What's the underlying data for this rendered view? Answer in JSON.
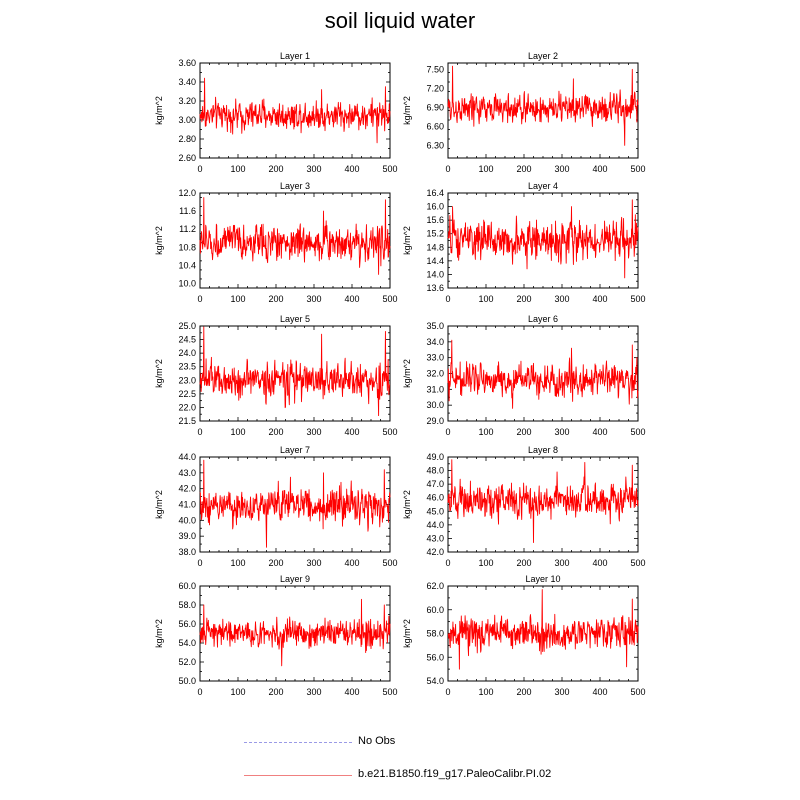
{
  "title": "soil liquid water",
  "legend": {
    "no_obs_label": "No Obs",
    "run_label": "b.e21.B1850.f19_g17.PaleoCalibr.PI.02",
    "no_obs_color": "#9a9ae6",
    "run_color": "#f08080"
  },
  "chart_data": [
    {
      "type": "line",
      "title": "Layer 1",
      "ylabel": "kg/m^2",
      "xlim": [
        0,
        500
      ],
      "ylim": [
        2.6,
        3.6
      ],
      "xticks": [
        0,
        100,
        200,
        300,
        400,
        500
      ],
      "yticks": [
        2.6,
        2.8,
        3.0,
        3.2,
        3.4,
        3.6
      ],
      "ytick_decimals": 2,
      "ytick_side": "left",
      "baseline": 3.05,
      "spread": 0.11,
      "spikes": [
        [
          12,
          3.44
        ],
        [
          320,
          3.32
        ],
        [
          466,
          2.76
        ],
        [
          488,
          3.35
        ]
      ],
      "series_color": "#ff0000",
      "n_points": 500
    },
    {
      "type": "line",
      "title": "Layer 2",
      "ylabel": "kg/m^2",
      "xlim": [
        0,
        500
      ],
      "ylim": [
        6.1,
        7.6
      ],
      "xticks": [
        0,
        100,
        200,
        300,
        400,
        500
      ],
      "yticks": [
        6.3,
        6.6,
        6.9,
        7.2,
        7.5
      ],
      "ytick_decimals": 2,
      "ytick_side": "left",
      "baseline": 6.88,
      "spread": 0.17,
      "spikes": [
        [
          12,
          7.55
        ],
        [
          485,
          7.5
        ],
        [
          465,
          6.3
        ],
        [
          330,
          7.35
        ]
      ],
      "series_color": "#ff0000",
      "n_points": 500
    },
    {
      "type": "line",
      "title": "Layer 3",
      "ylabel": "kg/m^2",
      "xlim": [
        0,
        500
      ],
      "ylim": [
        9.9,
        12.0
      ],
      "xticks": [
        0,
        100,
        200,
        300,
        400,
        500
      ],
      "yticks": [
        10.0,
        10.4,
        10.8,
        11.2,
        11.6,
        12.0
      ],
      "ytick_decimals": 1,
      "ytick_side": "left",
      "baseline": 10.9,
      "spread": 0.28,
      "spikes": [
        [
          10,
          11.9
        ],
        [
          325,
          11.6
        ],
        [
          488,
          11.85
        ],
        [
          470,
          10.2
        ]
      ],
      "series_color": "#ff0000",
      "n_points": 500
    },
    {
      "type": "line",
      "title": "Layer 4",
      "ylabel": "kg/m^2",
      "xlim": [
        0,
        500
      ],
      "ylim": [
        13.6,
        16.4
      ],
      "xticks": [
        0,
        100,
        200,
        300,
        400,
        500
      ],
      "yticks": [
        13.6,
        14.0,
        14.4,
        14.8,
        15.2,
        15.6,
        16.0,
        16.4
      ],
      "ytick_decimals": 1,
      "ytick_side": "left",
      "baseline": 15.0,
      "spread": 0.42,
      "spikes": [
        [
          12,
          16.0
        ],
        [
          485,
          16.2
        ],
        [
          465,
          13.9
        ],
        [
          325,
          16.0
        ]
      ],
      "series_color": "#ff0000",
      "n_points": 500
    },
    {
      "type": "line",
      "title": "Layer 5",
      "ylabel": "kg/m^2",
      "xlim": [
        0,
        500
      ],
      "ylim": [
        21.5,
        25.0
      ],
      "xticks": [
        0,
        100,
        200,
        300,
        400,
        500
      ],
      "yticks": [
        21.5,
        22.0,
        22.5,
        23.0,
        23.5,
        24.0,
        24.5,
        25.0
      ],
      "ytick_decimals": 1,
      "ytick_side": "left",
      "baseline": 23.0,
      "spread": 0.5,
      "spikes": [
        [
          10,
          25.0
        ],
        [
          320,
          24.7
        ],
        [
          488,
          24.8
        ],
        [
          470,
          21.7
        ]
      ],
      "series_color": "#ff0000",
      "n_points": 500
    },
    {
      "type": "line",
      "title": "Layer 6",
      "ylabel": "kg/m^2",
      "xlim": [
        0,
        500
      ],
      "ylim": [
        29.0,
        35.0
      ],
      "xticks": [
        0,
        100,
        200,
        300,
        400,
        500
      ],
      "yticks": [
        29.0,
        30.0,
        31.0,
        32.0,
        33.0,
        34.0,
        35.0
      ],
      "ytick_decimals": 1,
      "ytick_side": "left",
      "baseline": 31.6,
      "spread": 0.75,
      "spikes": [
        [
          10,
          34.1
        ],
        [
          485,
          33.8
        ],
        [
          325,
          33.6
        ],
        [
          170,
          29.8
        ]
      ],
      "series_color": "#ff0000",
      "n_points": 500
    },
    {
      "type": "line",
      "title": "Layer 7",
      "ylabel": "kg/m^2",
      "xlim": [
        0,
        500
      ],
      "ylim": [
        38.0,
        44.0
      ],
      "xticks": [
        0,
        100,
        200,
        300,
        400,
        500
      ],
      "yticks": [
        38.0,
        39.0,
        40.0,
        41.0,
        42.0,
        43.0,
        44.0
      ],
      "ytick_decimals": 1,
      "ytick_side": "left",
      "baseline": 40.9,
      "spread": 0.85,
      "spikes": [
        [
          10,
          43.8
        ],
        [
          485,
          43.2
        ],
        [
          175,
          38.3
        ],
        [
          325,
          43.0
        ]
      ],
      "series_color": "#ff0000",
      "n_points": 500
    },
    {
      "type": "line",
      "title": "Layer 8",
      "ylabel": "kg/m^2",
      "xlim": [
        0,
        500
      ],
      "ylim": [
        42.0,
        49.0
      ],
      "xticks": [
        0,
        100,
        200,
        300,
        400,
        500
      ],
      "yticks": [
        42.0,
        43.0,
        44.0,
        45.0,
        46.0,
        47.0,
        48.0,
        49.0
      ],
      "ytick_decimals": 1,
      "ytick_side": "left",
      "baseline": 45.8,
      "spread": 0.95,
      "spikes": [
        [
          10,
          48.8
        ],
        [
          360,
          48.6
        ],
        [
          485,
          48.4
        ],
        [
          225,
          42.7
        ]
      ],
      "series_color": "#ff0000",
      "n_points": 500
    },
    {
      "type": "line",
      "title": "Layer 9",
      "ylabel": "kg/m^2",
      "xlim": [
        0,
        500
      ],
      "ylim": [
        50.0,
        60.0
      ],
      "xticks": [
        0,
        100,
        200,
        300,
        400,
        500
      ],
      "yticks": [
        50.0,
        52.0,
        54.0,
        56.0,
        58.0,
        60.0
      ],
      "ytick_decimals": 1,
      "ytick_side": "left",
      "baseline": 55.0,
      "spread": 1.1,
      "spikes": [
        [
          10,
          58.0
        ],
        [
          425,
          58.6
        ],
        [
          485,
          58.0
        ],
        [
          215,
          51.6
        ]
      ],
      "series_color": "#ff0000",
      "n_points": 500
    },
    {
      "type": "line",
      "title": "Layer 10",
      "ylabel": "kg/m^2",
      "xlim": [
        0,
        500
      ],
      "ylim": [
        54.0,
        62.0
      ],
      "xticks": [
        0,
        100,
        200,
        300,
        400,
        500
      ],
      "yticks": [
        54.0,
        56.0,
        58.0,
        60.0,
        62.0
      ],
      "ytick_decimals": 1,
      "ytick_side": "both",
      "baseline": 58.0,
      "spread": 1.0,
      "spikes": [
        [
          248,
          61.7
        ],
        [
          30,
          55.0
        ],
        [
          485,
          60.9
        ],
        [
          470,
          55.2
        ]
      ],
      "series_color": "#ff0000",
      "n_points": 500
    }
  ]
}
